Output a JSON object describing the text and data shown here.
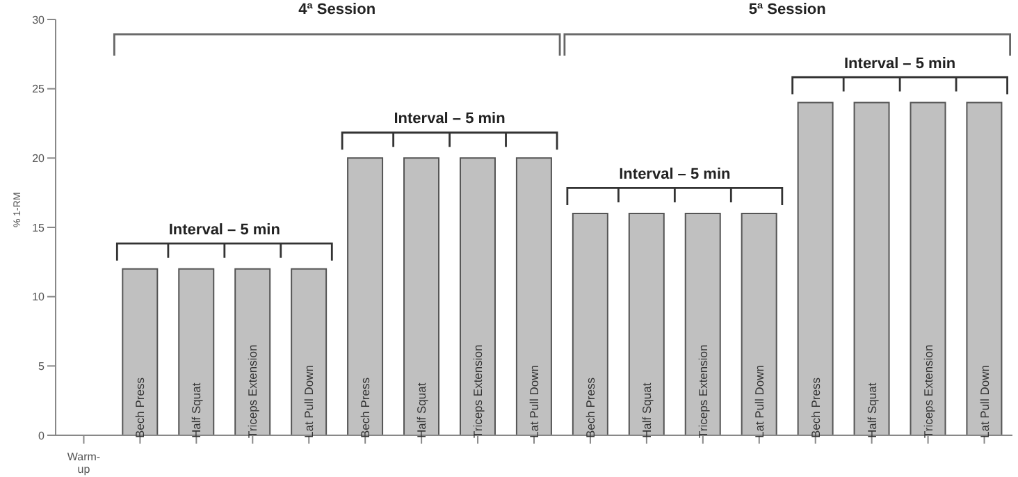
{
  "chart_data": {
    "type": "bar",
    "ylabel": "% 1-RM",
    "categories": [
      "Warm-up",
      "Bech Press",
      "Half Squat",
      "Triceps Extension",
      "Lat Pull Down",
      "Bech Press",
      "Half Squat",
      "Triceps Extension",
      "Lat Pull Down",
      "Bech Press",
      "Half Squat",
      "Triceps Extension",
      "Lat Pull Down",
      "Bech Press",
      "Half Squat",
      "Triceps Extension",
      "Lat Pull Down"
    ],
    "values": [
      null,
      12,
      12,
      12,
      12,
      20,
      20,
      20,
      20,
      16,
      16,
      16,
      16,
      24,
      24,
      24,
      24
    ],
    "color": "#c0c0c0",
    "ylim": [
      0,
      30
    ],
    "yticks": [
      0,
      5,
      10,
      15,
      20,
      25,
      30
    ],
    "grid": false,
    "legend": false,
    "annotations": [
      "4ª Session",
      "5ª Session",
      "Interval – 5 min",
      "Interval – 5 min",
      "Interval – 5 min",
      "Interval – 5 min"
    ]
  }
}
